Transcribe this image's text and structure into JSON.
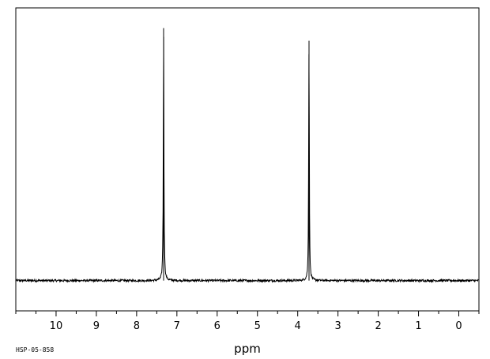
{
  "chart_data": {
    "type": "line",
    "xlabel": "ppm",
    "ylabel": "",
    "title": "",
    "xlim": [
      11.0,
      -0.5
    ],
    "x_reversed": true,
    "x_ticks": [
      10,
      9,
      8,
      7,
      6,
      5,
      4,
      3,
      2,
      1,
      0
    ],
    "ylim": [
      -0.12,
      1.08
    ],
    "baseline": 0,
    "grid": false,
    "legend": "none",
    "peaks": [
      {
        "ppm": 7.33,
        "height": 1.0,
        "width": 0.018
      },
      {
        "ppm": 3.72,
        "height": 0.95,
        "width": 0.018
      }
    ],
    "series": [
      {
        "values": [
          [
            11.0,
            0.0
          ],
          [
            7.4,
            0.0
          ],
          [
            7.36,
            0.1
          ],
          [
            7.34,
            0.33
          ],
          [
            7.33,
            1.0
          ],
          [
            7.32,
            0.33
          ],
          [
            7.3,
            0.1
          ],
          [
            7.26,
            0.0
          ],
          [
            3.79,
            0.0
          ],
          [
            3.75,
            0.1
          ],
          [
            3.73,
            0.45
          ],
          [
            3.72,
            0.95
          ],
          [
            3.71,
            0.45
          ],
          [
            3.69,
            0.1
          ],
          [
            3.65,
            0.0
          ],
          [
            -0.5,
            0.0
          ]
        ]
      }
    ]
  },
  "footer_code": "HSP-05-858",
  "colors": {
    "line": "#000000",
    "frame": "#000000",
    "background": "#ffffff"
  }
}
